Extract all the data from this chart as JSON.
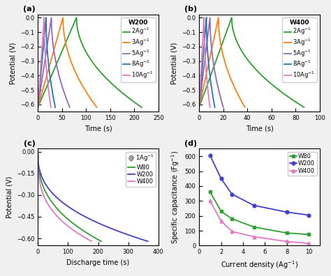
{
  "panel_a": {
    "title": "W200",
    "xlabel": "Time (s)",
    "ylabel": "Potential (V)",
    "xlim": [
      0,
      250
    ],
    "ylim": [
      -0.65,
      0.02
    ],
    "yticks": [
      0.0,
      -0.1,
      -0.2,
      -0.3,
      -0.4,
      -0.5,
      -0.6
    ],
    "xticks": [
      0,
      50,
      100,
      150,
      200,
      250
    ],
    "curves": [
      {
        "label": "2Ag$^{-1}$",
        "color": "#2ca02c",
        "charge_t_end": 80,
        "discharge_t_end": 215
      },
      {
        "label": "3Ag$^{-1}$",
        "color": "#ff7f0e",
        "charge_t_end": 52,
        "discharge_t_end": 122
      },
      {
        "label": "5Ag$^{-1}$",
        "color": "#9467bd",
        "charge_t_end": 28,
        "discharge_t_end": 66
      },
      {
        "label": "8Ag$^{-1}$",
        "color": "#1f77b4",
        "charge_t_end": 17,
        "discharge_t_end": 36
      },
      {
        "label": "10Ag$^{-1}$",
        "color": "#e377c2",
        "charge_t_end": 13,
        "discharge_t_end": 27
      }
    ]
  },
  "panel_b": {
    "title": "W400",
    "xlabel": "Time (s)",
    "ylabel": "Potential (V)",
    "xlim": [
      0,
      100
    ],
    "ylim": [
      -0.65,
      0.02
    ],
    "yticks": [
      0.0,
      -0.1,
      -0.2,
      -0.3,
      -0.4,
      -0.5,
      -0.6
    ],
    "xticks": [
      0,
      20,
      40,
      60,
      80,
      100
    ],
    "curves": [
      {
        "label": "2Ag$^{-1}$",
        "color": "#2ca02c",
        "charge_t_end": 27,
        "discharge_t_end": 87
      },
      {
        "label": "3Ag$^{-1}$",
        "color": "#ff7f0e",
        "charge_t_end": 16,
        "discharge_t_end": 38
      },
      {
        "label": "5Ag$^{-1}$",
        "color": "#9467bd",
        "charge_t_end": 9,
        "discharge_t_end": 20
      },
      {
        "label": "8Ag$^{-1}$",
        "color": "#1f77b4",
        "charge_t_end": 6,
        "discharge_t_end": 13
      },
      {
        "label": "10Ag$^{-1}$",
        "color": "#e377c2",
        "charge_t_end": 4,
        "discharge_t_end": 9
      }
    ]
  },
  "panel_c": {
    "annotation": "@ 1Ag$^{-1}$",
    "xlabel": "Discharge time (s)",
    "ylabel": "Potential (V)",
    "xlim": [
      0,
      400
    ],
    "ylim": [
      -0.65,
      0.02
    ],
    "yticks": [
      0.0,
      -0.15,
      -0.3,
      -0.45,
      -0.6
    ],
    "xticks": [
      0,
      100,
      200,
      300,
      400
    ],
    "curves": [
      {
        "label": "W80",
        "color": "#2ca02c",
        "t_end": 210,
        "exp": 0.38
      },
      {
        "label": "W200",
        "color": "#4040cc",
        "t_end": 365,
        "exp": 0.38
      },
      {
        "label": "W400",
        "color": "#e377c2",
        "t_end": 178,
        "exp": 0.32
      }
    ]
  },
  "panel_d": {
    "xlabel": "Current density (Ag$^{-1}$)",
    "ylabel": "Specific capacitance (Fg$^{-1}$)",
    "xlim": [
      0,
      11
    ],
    "ylim": [
      0,
      650
    ],
    "yticks": [
      0,
      100,
      200,
      300,
      400,
      500,
      600
    ],
    "xticks": [
      0,
      2,
      4,
      6,
      8,
      10
    ],
    "curves": [
      {
        "label": "W80",
        "color": "#2ca02c",
        "marker": "s",
        "x": [
          1,
          2,
          3,
          5,
          8,
          10
        ],
        "y": [
          360,
          230,
          180,
          125,
          85,
          75
        ]
      },
      {
        "label": "W200",
        "color": "#4040cc",
        "marker": "o",
        "x": [
          1,
          2,
          3,
          5,
          8,
          10
        ],
        "y": [
          605,
          450,
          345,
          270,
          225,
          205
        ]
      },
      {
        "label": "W400",
        "color": "#e377c2",
        "marker": "^",
        "x": [
          1,
          2,
          3,
          5,
          8,
          10
        ],
        "y": [
          300,
          165,
          95,
          60,
          28,
          15
        ]
      }
    ]
  },
  "linewidth": 1.3,
  "label_fontsize": 7,
  "tick_fontsize": 6,
  "legend_fontsize": 6
}
